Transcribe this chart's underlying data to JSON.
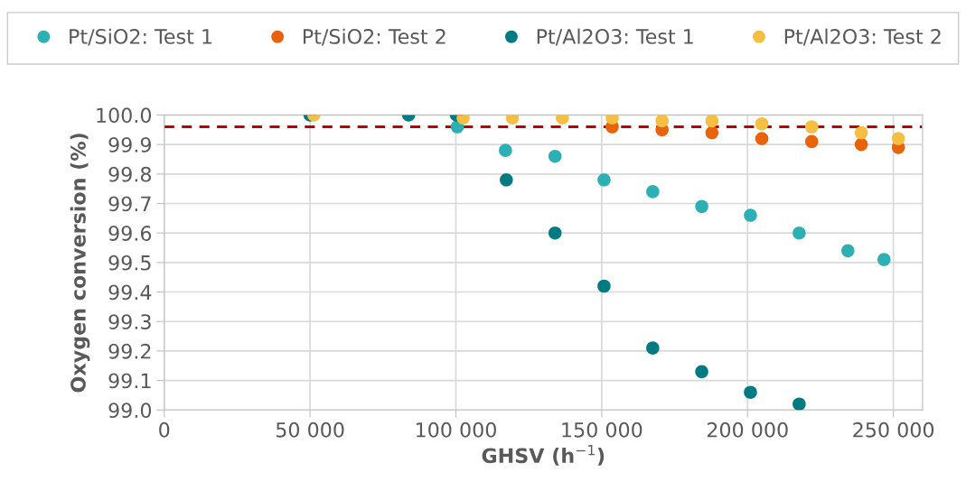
{
  "chart_data": {
    "type": "scatter",
    "xlabel": "GHSV (h$^{−1}$)",
    "ylabel": "Oxygen conversion (%)",
    "xlim": [
      0,
      260000
    ],
    "ylim": [
      99.0,
      100.0
    ],
    "xticks": [
      {
        "value": 0,
        "label": "0"
      },
      {
        "value": 50000,
        "label": "50 000"
      },
      {
        "value": 100000,
        "label": "100 000"
      },
      {
        "value": 150000,
        "label": "150 000"
      },
      {
        "value": 200000,
        "label": "200 000"
      },
      {
        "value": 250000,
        "label": "250 000"
      }
    ],
    "yticks": [
      {
        "value": 99.0,
        "label": "99.0"
      },
      99.1,
      99.2,
      99.3,
      99.4,
      99.5,
      99.6,
      99.7,
      99.8,
      99.9,
      {
        "value": 100.0,
        "label": "100.0"
      }
    ],
    "grid": true,
    "legend": "top",
    "marker": "circle",
    "ref_lines": [
      {
        "axis": "y",
        "value": 99.96,
        "color": "#c00000",
        "line_style": "dashed"
      }
    ],
    "series": [
      {
        "name": "Pt/SiO2: Test 1",
        "color": "#2db0b4",
        "x": [
          100500,
          117000,
          134000,
          150800,
          167500,
          184300,
          201000,
          217700,
          234400,
          246800
        ],
        "values": [
          99.96,
          99.88,
          99.86,
          99.78,
          99.74,
          99.69,
          99.66,
          99.6,
          99.54,
          99.51
        ]
      },
      {
        "name": "Pt/SiO2: Test 2",
        "color": "#e8630c",
        "x": [
          153600,
          170700,
          187800,
          204900,
          222000,
          239000,
          251700
        ],
        "values": [
          99.96,
          99.95,
          99.94,
          99.92,
          99.91,
          99.9,
          99.89
        ]
      },
      {
        "name": "Pt/Al2O3: Test 1",
        "color": "#007b82",
        "x": [
          50000,
          83800,
          100200,
          117300,
          134000,
          150800,
          167500,
          184300,
          201000,
          217700
        ],
        "values": [
          100.0,
          100.0,
          100.0,
          99.78,
          99.6,
          99.42,
          99.21,
          99.13,
          99.06,
          99.02
        ]
      },
      {
        "name": "Pt/Al2O3: Test 2",
        "color": "#f4bf42",
        "x": [
          51300,
          102500,
          119400,
          136500,
          153600,
          170700,
          187800,
          204900,
          222000,
          239000,
          251700
        ],
        "values": [
          100.0,
          99.99,
          99.99,
          99.99,
          99.99,
          99.98,
          99.98,
          99.97,
          99.96,
          99.94,
          99.92
        ]
      }
    ]
  }
}
